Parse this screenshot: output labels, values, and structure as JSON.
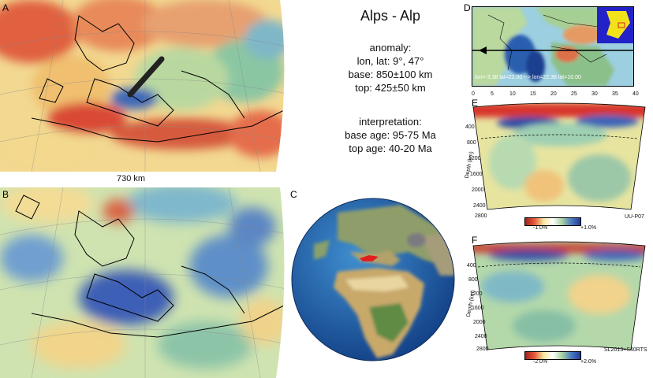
{
  "title": "Alps - Alp",
  "anomaly": {
    "heading": "anomaly:",
    "lonlat": "lon, lat: 9°, 47°",
    "base": "base: 850±100 km",
    "top": "top: 425±50 km"
  },
  "interpretation": {
    "heading": "interpretation:",
    "base_age": "base age: 95-75 Ma",
    "top_age": "top age: 40-20 Ma"
  },
  "panels": {
    "a": "A",
    "b": "B",
    "c": "C",
    "d": "D",
    "e": "E",
    "f": "F"
  },
  "scale_label": "730 km",
  "section_d": {
    "caption": "lon=-3.38 lat=22.00 --> lon=22.36 lat=10.00"
  },
  "section_e": {
    "top_ticks": [
      "0",
      "5",
      "10",
      "15",
      "20",
      "25",
      "30",
      "35",
      "40"
    ],
    "depth_label": "Depth (km)",
    "depth_ticks": [
      "400",
      "800",
      "1200",
      "1600",
      "2000",
      "2400",
      "2800"
    ],
    "cbar_min": "-1.0%",
    "cbar_max": "+1.0%",
    "model": "UU-P07"
  },
  "section_f": {
    "depth_label": "Depth (km)",
    "depth_ticks": [
      "400",
      "800",
      "1200",
      "1600",
      "2000",
      "2400",
      "2800"
    ],
    "cbar_min": "-2.0%",
    "cbar_max": "+2.0%",
    "model": "SL2013+S40RTS"
  },
  "colors": {
    "fast": "#2a3f9e",
    "slow": "#c0282a",
    "neutral": "#f7e6a0",
    "mid_green": "#a8d2a0",
    "ocean": "#1f5fa8"
  }
}
